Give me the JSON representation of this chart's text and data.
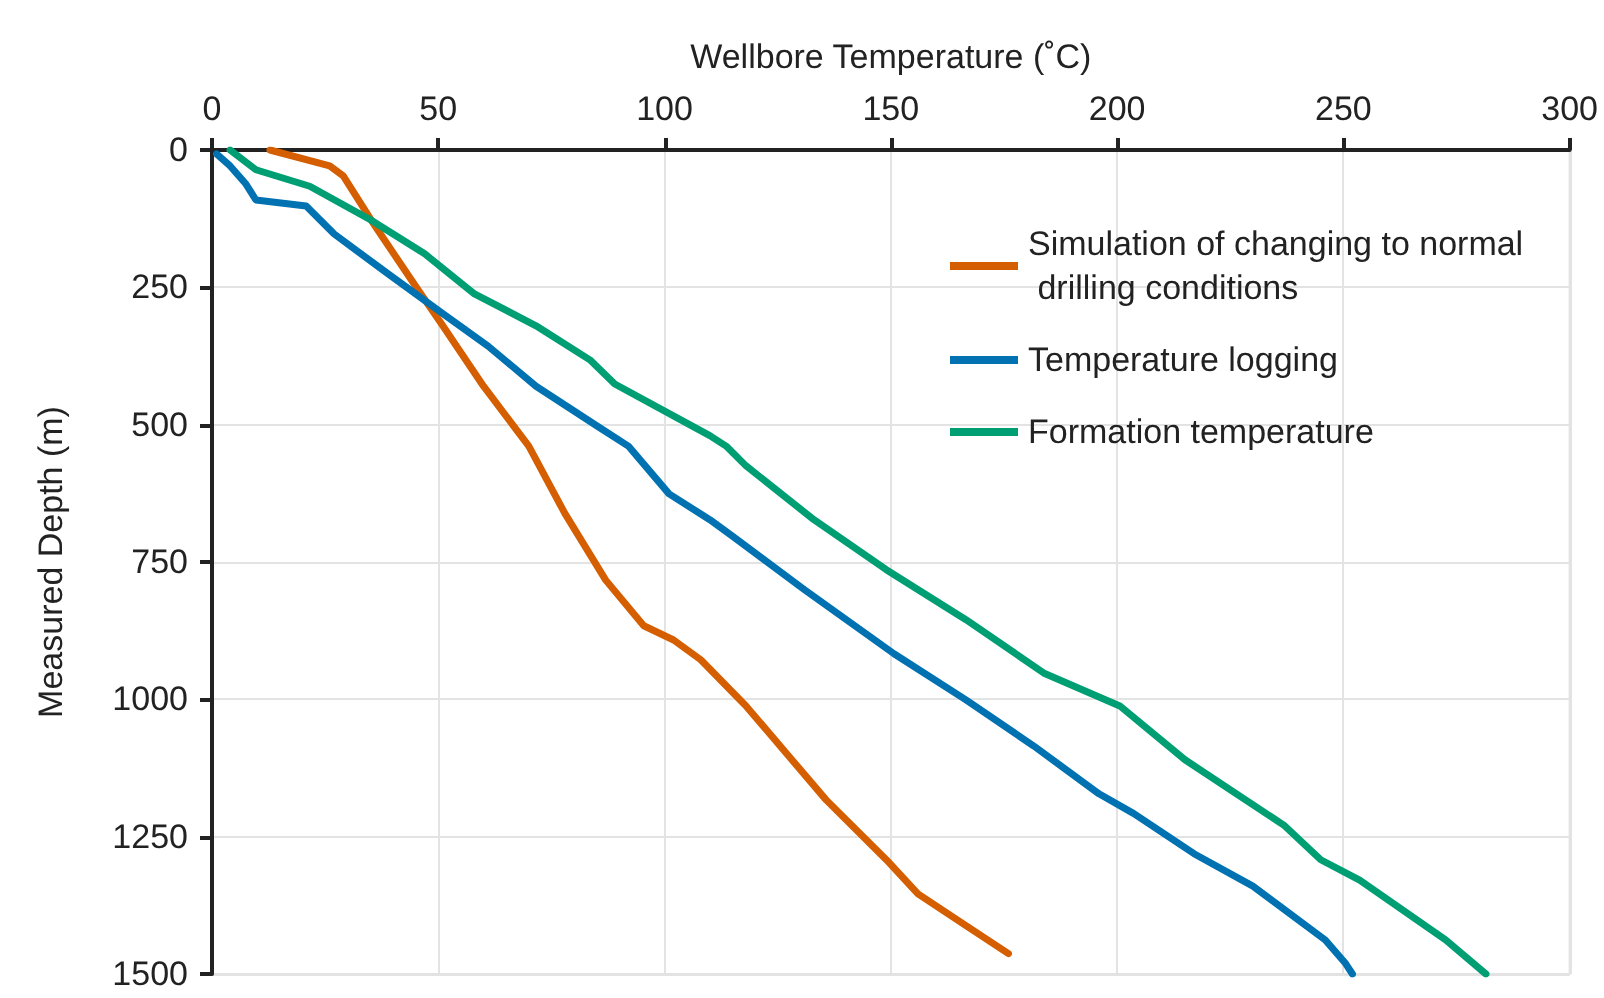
{
  "chart_data": {
    "type": "line",
    "xlabel": "Wellbore Temperature (˚C)",
    "ylabel": "Measured Depth (m)",
    "xlim": [
      0,
      300
    ],
    "xticks": [
      0,
      50,
      100,
      150,
      200,
      250,
      300
    ],
    "ylim": [
      1500,
      0
    ],
    "yticks": [
      0,
      250,
      500,
      750,
      1000,
      1250,
      1500
    ],
    "grid": true,
    "legend": "top right",
    "marker": "none",
    "line_style": "solid",
    "series": [
      {
        "name": "Simulation of changing to normal drilling conditions",
        "color": "#d55e00",
        "x": [
          12.8,
          26,
          29,
          36,
          45,
          51,
          60,
          70,
          78,
          87,
          95.4,
          102,
          108,
          118,
          127,
          135.7,
          149,
          156,
          166.6,
          176
        ],
        "values": [
          0,
          29,
          47,
          138,
          248,
          320,
          430,
          539,
          662,
          783,
          866,
          892,
          928,
          1012,
          1099,
          1183,
          1292,
          1354,
          1412,
          1463
        ]
      },
      {
        "name": "Temperature logging",
        "color": "#0072b2",
        "x": [
          1,
          4,
          7.5,
          9.7,
          20.8,
          27,
          39,
          51,
          61,
          71.6,
          85,
          92,
          101,
          110,
          115,
          131,
          150.7,
          166.6,
          181.6,
          196,
          203.7,
          217,
          230,
          246,
          250.5,
          252
        ],
        "values": [
          7,
          29,
          62,
          91,
          102,
          153,
          226,
          298,
          357,
          430,
          502,
          539,
          626,
          673,
          703,
          801,
          917,
          1001,
          1085,
          1172,
          1208,
          1281,
          1340,
          1438,
          1481,
          1500
        ]
      },
      {
        "name": "Formation temperature",
        "color": "#009e73",
        "x": [
          4,
          9.7,
          21.6,
          35,
          47,
          58,
          71.6,
          83.5,
          89,
          110,
          113.6,
          118,
          133,
          149,
          166.6,
          184,
          200.6,
          215,
          237,
          245,
          253.6,
          272.6,
          281.5
        ],
        "values": [
          0,
          36,
          66,
          127,
          189,
          262,
          320,
          382,
          426,
          520,
          539,
          575,
          673,
          764,
          855,
          953,
          1012,
          1110,
          1230,
          1292,
          1329,
          1438,
          1500
        ]
      }
    ]
  }
}
